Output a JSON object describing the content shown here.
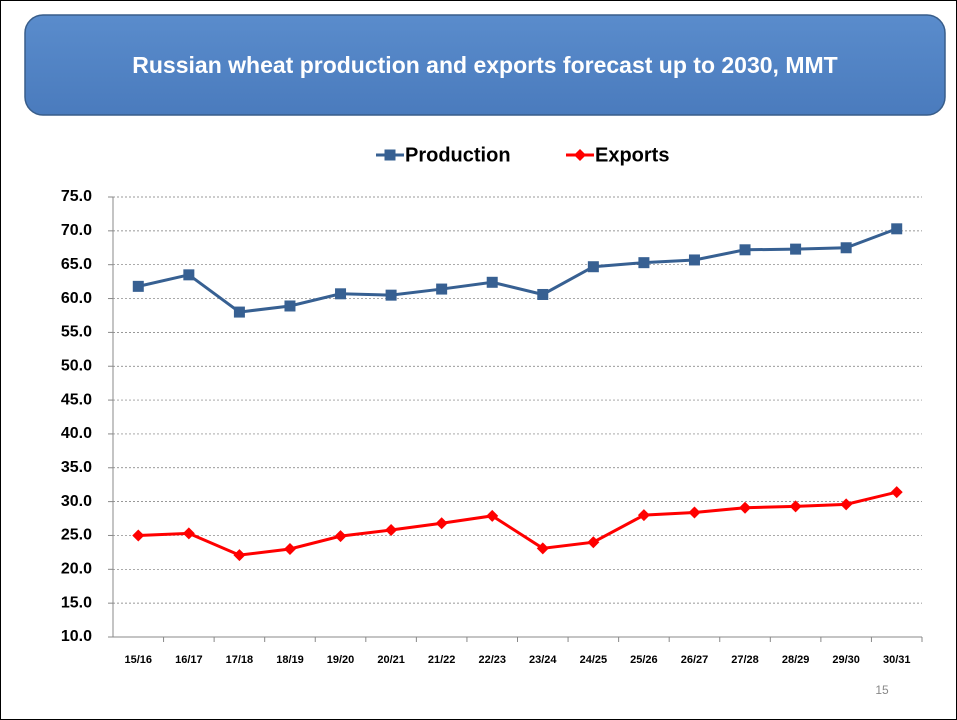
{
  "chart_data": {
    "type": "line",
    "title": "Russian wheat production and exports forecast up to 2030, MMT",
    "categories": [
      "15/16",
      "16/17",
      "17/18",
      "18/19",
      "19/20",
      "20/21",
      "21/22",
      "22/23",
      "23/24",
      "24/25",
      "25/26",
      "26/27",
      "27/28",
      "28/29",
      "29/30",
      "30/31"
    ],
    "series": [
      {
        "name": "Production",
        "color": "#376092",
        "marker": "square",
        "values": [
          61.8,
          63.5,
          58.0,
          58.9,
          60.7,
          60.5,
          61.4,
          62.4,
          60.6,
          64.7,
          65.3,
          65.7,
          67.2,
          67.3,
          67.5,
          70.3
        ]
      },
      {
        "name": "Exports",
        "color": "#ff0000",
        "marker": "diamond",
        "values": [
          25.0,
          25.3,
          22.1,
          23.0,
          24.9,
          25.8,
          26.8,
          27.9,
          23.1,
          24.0,
          28.0,
          28.4,
          29.1,
          29.3,
          29.6,
          31.4
        ]
      }
    ],
    "ylim": [
      10,
      75
    ],
    "yticks": [
      {
        "value": 10,
        "label": "10.0"
      },
      {
        "value": 15,
        "label": "15.0"
      },
      {
        "value": 20,
        "label": "20.0"
      },
      {
        "value": 25,
        "label": "25.0"
      },
      {
        "value": 30,
        "label": "30.0"
      },
      {
        "value": 35,
        "label": "35.0"
      },
      {
        "value": 40,
        "label": "40.0"
      },
      {
        "value": 45,
        "label": "45.0"
      },
      {
        "value": 50,
        "label": "50.0"
      },
      {
        "value": 55,
        "label": "55.0"
      },
      {
        "value": 60,
        "label": "60.0"
      },
      {
        "value": 65,
        "label": "65.0"
      },
      {
        "value": 70,
        "label": "70.0"
      },
      {
        "value": 75,
        "label": "75.0"
      }
    ],
    "grid": true,
    "legend": "top"
  },
  "page_number": "15"
}
